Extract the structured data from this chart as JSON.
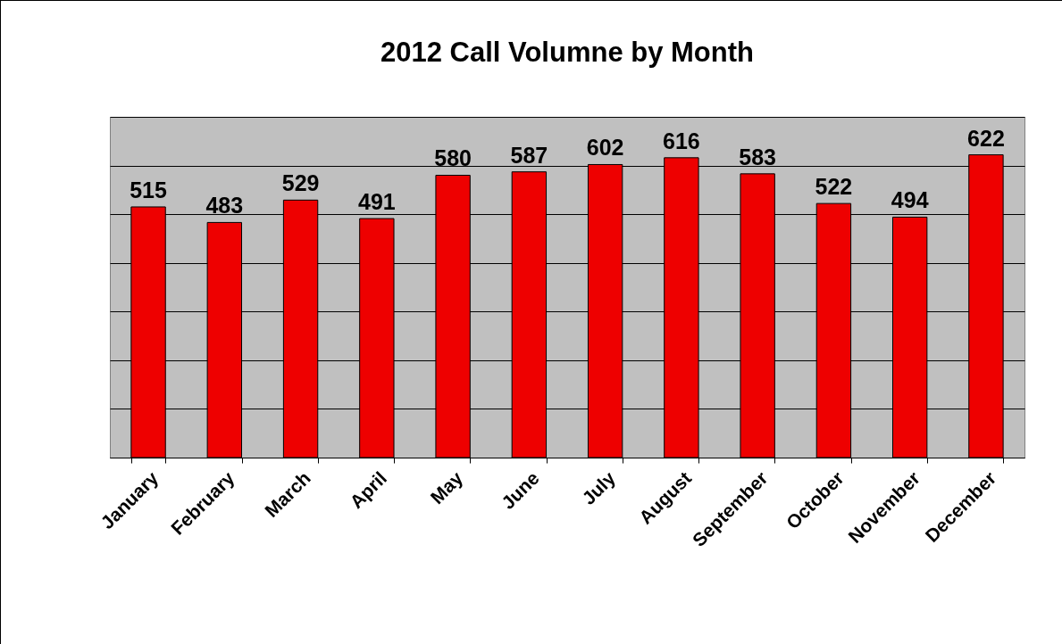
{
  "chart_data": {
    "type": "bar",
    "title": "2012 Call Volumne by Month",
    "categories": [
      "January",
      "February",
      "March",
      "April",
      "May",
      "June",
      "July",
      "August",
      "September",
      "October",
      "November",
      "December"
    ],
    "values": [
      515,
      483,
      529,
      491,
      580,
      587,
      602,
      616,
      583,
      522,
      494,
      622
    ],
    "color": "#ee0000",
    "data_labels": true,
    "tick_labels": "x",
    "grid": "y",
    "ylim": [
      0,
      700
    ],
    "yticks": [
      {
        "value": 0,
        "label": null
      },
      {
        "value": 100,
        "label": null
      },
      {
        "value": 200,
        "label": null
      },
      {
        "value": 300,
        "label": null
      },
      {
        "value": 400,
        "label": null
      },
      {
        "value": 500,
        "label": null
      },
      {
        "value": 600,
        "label": null
      },
      {
        "value": 700,
        "label": null
      }
    ]
  }
}
